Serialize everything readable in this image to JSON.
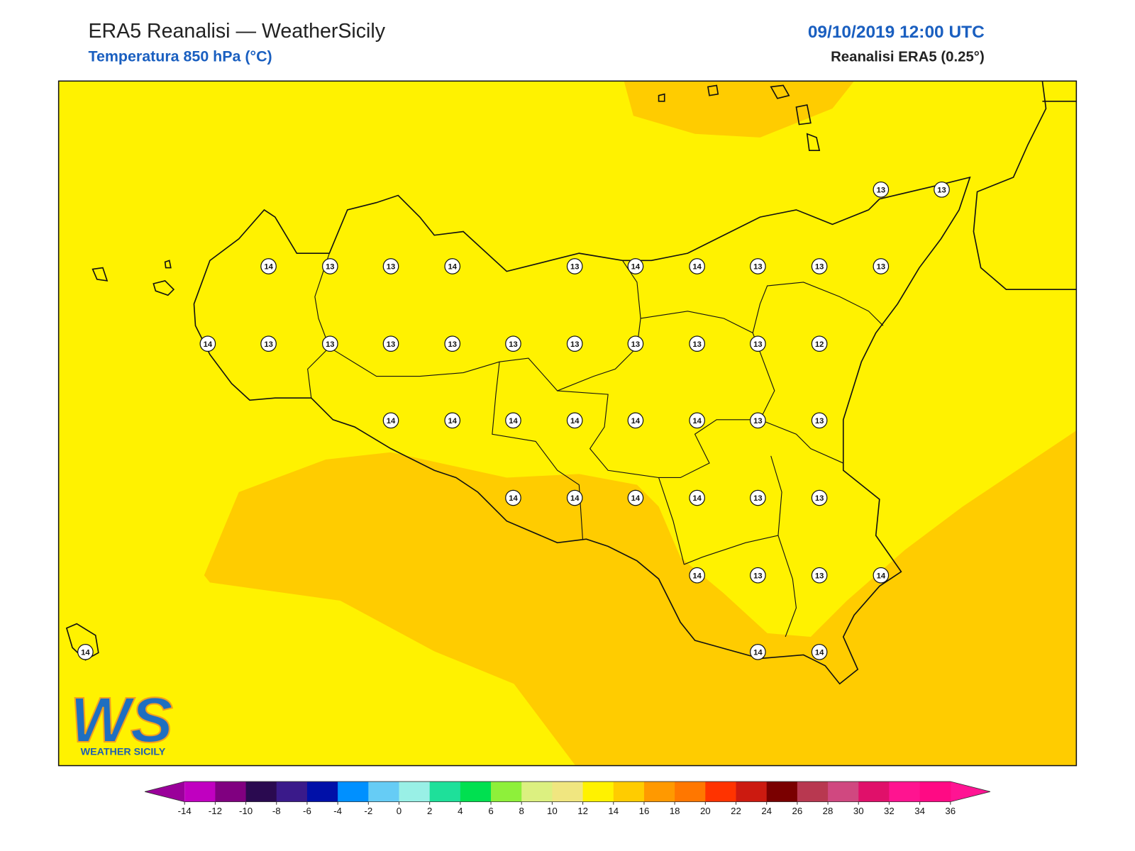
{
  "header": {
    "title": "ERA5 Reanalisi — WeatherSicily",
    "subtitle": "Temperatura 850 hPa (°C)",
    "datetime": "09/10/2019 12:00 UTC",
    "source": "Reanalisi ERA5 (0.25°)"
  },
  "map": {
    "background_color": "#fff200",
    "warm_color": "#ffcc00",
    "stations": [
      13,
      13,
      14,
      13,
      13,
      14,
      13,
      14,
      14,
      13,
      13,
      13,
      14,
      13,
      13,
      13,
      13,
      13,
      13,
      13,
      13,
      13,
      12,
      14,
      14,
      14,
      14,
      14,
      14,
      13,
      13,
      14,
      14,
      14,
      14,
      13,
      13,
      14,
      13,
      13,
      14,
      14,
      14,
      14
    ]
  },
  "colorbar": {
    "ticks": [
      -14,
      -12,
      -10,
      -8,
      -6,
      -4,
      -2,
      0,
      2,
      4,
      6,
      8,
      10,
      12,
      14,
      16,
      18,
      20,
      22,
      24,
      26,
      28,
      30,
      32,
      34,
      36
    ],
    "colors": [
      "#c000c0",
      "#800080",
      "#2a0a50",
      "#3a1a8a",
      "#0010a8",
      "#0090ff",
      "#66ccf5",
      "#99f0e6",
      "#1ee09a",
      "#00e050",
      "#8ef03a",
      "#dcf080",
      "#f0e680",
      "#fff200",
      "#ffcc00",
      "#ff9900",
      "#ff7700",
      "#ff3300",
      "#cc1a10",
      "#7a0000",
      "#b83850",
      "#d04880",
      "#e0106a",
      "#ff1490",
      "#ff0a84"
    ],
    "under_color": "#9a009a",
    "over_color": "#ff1493"
  },
  "logo": {
    "mark": "WS",
    "name": "WEATHER SICILY"
  }
}
